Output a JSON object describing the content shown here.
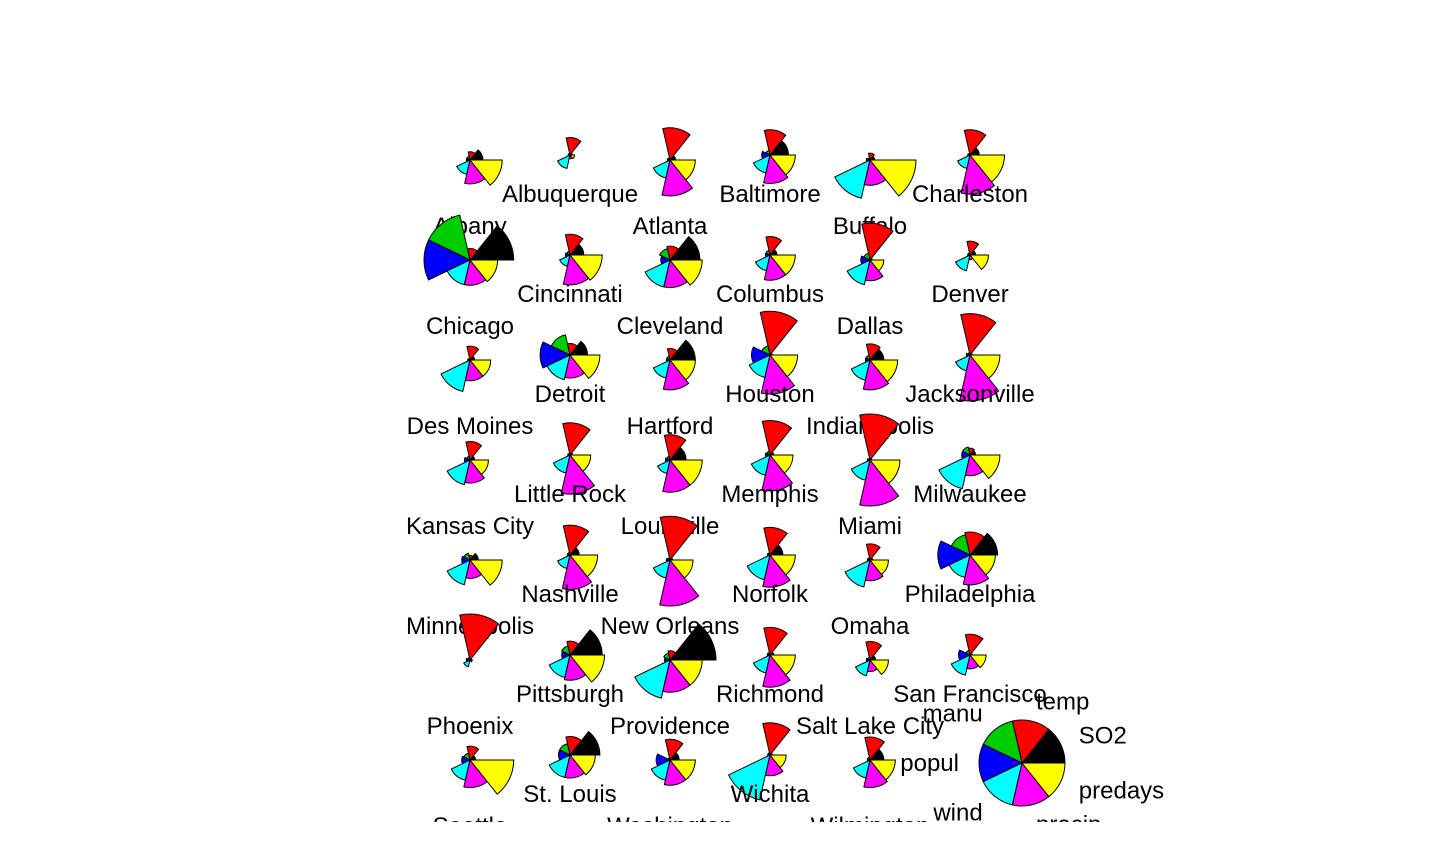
{
  "chart_data": {
    "type": "star-segments",
    "variables": [
      "SO2",
      "temp",
      "manu",
      "popul",
      "wind",
      "precip",
      "predays"
    ],
    "colors": {
      "SO2": "#000000",
      "temp": "#ff0000",
      "manu": "#00cd00",
      "popul": "#0000ff",
      "wind": "#00ffff",
      "precip": "#ff00ff",
      "predays": "#ffff00"
    },
    "cities": [
      {
        "name": "Albany",
        "values": [
          0.28,
          0.18,
          0.08,
          0.08,
          0.32,
          0.52,
          0.7
        ]
      },
      {
        "name": "Albuquerque",
        "values": [
          0.05,
          0.38,
          0.04,
          0.04,
          0.3,
          0.08,
          0.1
        ]
      },
      {
        "name": "Atlanta",
        "values": [
          0.12,
          0.7,
          0.05,
          0.06,
          0.4,
          0.78,
          0.55
        ]
      },
      {
        "name": "Baltimore",
        "values": [
          0.4,
          0.55,
          0.1,
          0.18,
          0.4,
          0.62,
          0.55
        ]
      },
      {
        "name": "Buffalo",
        "values": [
          0.1,
          0.15,
          0.05,
          0.08,
          0.85,
          0.55,
          1.0
        ]
      },
      {
        "name": "Charleston",
        "values": [
          0.2,
          0.55,
          0.04,
          0.05,
          0.3,
          0.85,
          0.75
        ]
      },
      {
        "name": "Chicago",
        "values": [
          0.95,
          0.25,
          1.0,
          1.0,
          0.55,
          0.55,
          0.6
        ]
      },
      {
        "name": "Cincinnati",
        "values": [
          0.3,
          0.45,
          0.08,
          0.1,
          0.25,
          0.65,
          0.7
        ]
      },
      {
        "name": "Cleveland",
        "values": [
          0.65,
          0.3,
          0.25,
          0.2,
          0.6,
          0.6,
          0.7
        ]
      },
      {
        "name": "Columbus",
        "values": [
          0.15,
          0.4,
          0.1,
          0.1,
          0.35,
          0.55,
          0.55
        ]
      },
      {
        "name": "Dallas",
        "values": [
          0.05,
          0.8,
          0.15,
          0.2,
          0.55,
          0.45,
          0.3
        ]
      },
      {
        "name": "Denver",
        "values": [
          0.12,
          0.3,
          0.05,
          0.05,
          0.35,
          0.1,
          0.4
        ]
      },
      {
        "name": "Des Moines",
        "values": [
          0.1,
          0.3,
          0.04,
          0.05,
          0.7,
          0.45,
          0.45
        ]
      },
      {
        "name": "Detroit",
        "values": [
          0.38,
          0.25,
          0.45,
          0.65,
          0.55,
          0.5,
          0.65
        ]
      },
      {
        "name": "Hartford",
        "values": [
          0.55,
          0.25,
          0.08,
          0.08,
          0.4,
          0.65,
          0.55
        ]
      },
      {
        "name": "Houston",
        "values": [
          0.05,
          0.95,
          0.2,
          0.4,
          0.5,
          0.85,
          0.6
        ]
      },
      {
        "name": "Indianapolis",
        "values": [
          0.3,
          0.35,
          0.1,
          0.1,
          0.45,
          0.65,
          0.6
        ]
      },
      {
        "name": "Jacksonville",
        "values": [
          0.05,
          0.9,
          0.05,
          0.08,
          0.35,
          1.0,
          0.65
        ]
      },
      {
        "name": "Kansas City",
        "values": [
          0.1,
          0.4,
          0.08,
          0.12,
          0.55,
          0.5,
          0.4
        ]
      },
      {
        "name": "Little Rock",
        "values": [
          0.06,
          0.7,
          0.04,
          0.05,
          0.4,
          0.85,
          0.45
        ]
      },
      {
        "name": "Louisville",
        "values": [
          0.35,
          0.55,
          0.08,
          0.1,
          0.3,
          0.7,
          0.7
        ]
      },
      {
        "name": "Memphis",
        "values": [
          0.08,
          0.75,
          0.08,
          0.1,
          0.45,
          0.78,
          0.5
        ]
      },
      {
        "name": "Miami",
        "values": [
          0.04,
          1.0,
          0.04,
          0.06,
          0.45,
          1.0,
          0.65
        ]
      },
      {
        "name": "Milwaukee",
        "values": [
          0.12,
          0.15,
          0.18,
          0.18,
          0.75,
          0.45,
          0.65
        ]
      },
      {
        "name": "Minneapolis",
        "values": [
          0.18,
          0.1,
          0.15,
          0.18,
          0.55,
          0.4,
          0.7
        ]
      },
      {
        "name": "Nashville",
        "values": [
          0.2,
          0.65,
          0.06,
          0.06,
          0.3,
          0.75,
          0.6
        ]
      },
      {
        "name": "New Orleans",
        "values": [
          0.06,
          0.95,
          0.05,
          0.08,
          0.4,
          1.0,
          0.5
        ]
      },
      {
        "name": "Norfolk",
        "values": [
          0.28,
          0.6,
          0.05,
          0.06,
          0.55,
          0.7,
          0.55
        ]
      },
      {
        "name": "Omaha",
        "values": [
          0.06,
          0.35,
          0.05,
          0.06,
          0.6,
          0.45,
          0.4
        ]
      },
      {
        "name": "Philadelphia",
        "values": [
          0.6,
          0.5,
          0.45,
          0.7,
          0.5,
          0.65,
          0.55
        ]
      },
      {
        "name": "Phoenix",
        "values": [
          0.04,
          1.0,
          0.06,
          0.08,
          0.15,
          0.02,
          0.05
        ]
      },
      {
        "name": "Pittsburgh",
        "values": [
          0.7,
          0.3,
          0.2,
          0.18,
          0.5,
          0.55,
          0.75
        ]
      },
      {
        "name": "Providence",
        "values": [
          1.0,
          0.2,
          0.15,
          0.12,
          0.85,
          0.7,
          0.7
        ]
      },
      {
        "name": "Richmond",
        "values": [
          0.08,
          0.6,
          0.06,
          0.06,
          0.4,
          0.7,
          0.55
        ]
      },
      {
        "name": "Salt Lake City",
        "values": [
          0.12,
          0.4,
          0.06,
          0.08,
          0.35,
          0.25,
          0.4
        ]
      },
      {
        "name": "San Francisco",
        "values": [
          0.05,
          0.45,
          0.1,
          0.25,
          0.45,
          0.3,
          0.35
        ]
      },
      {
        "name": "Seattle",
        "values": [
          0.12,
          0.3,
          0.15,
          0.18,
          0.45,
          0.6,
          0.95
        ]
      },
      {
        "name": "St. Louis",
        "values": [
          0.65,
          0.4,
          0.25,
          0.25,
          0.5,
          0.5,
          0.55
        ]
      },
      {
        "name": "Washington",
        "values": [
          0.2,
          0.45,
          0.05,
          0.3,
          0.45,
          0.55,
          0.55
        ]
      },
      {
        "name": "Wichita",
        "values": [
          0.05,
          0.7,
          0.05,
          0.05,
          1.0,
          0.45,
          0.35
        ]
      },
      {
        "name": "Wilmington",
        "values": [
          0.3,
          0.5,
          0.06,
          0.06,
          0.4,
          0.6,
          0.55
        ]
      }
    ],
    "key": {
      "labels": [
        "SO2",
        "temp",
        "manu",
        "popul",
        "wind",
        "precip",
        "predays"
      ]
    }
  }
}
